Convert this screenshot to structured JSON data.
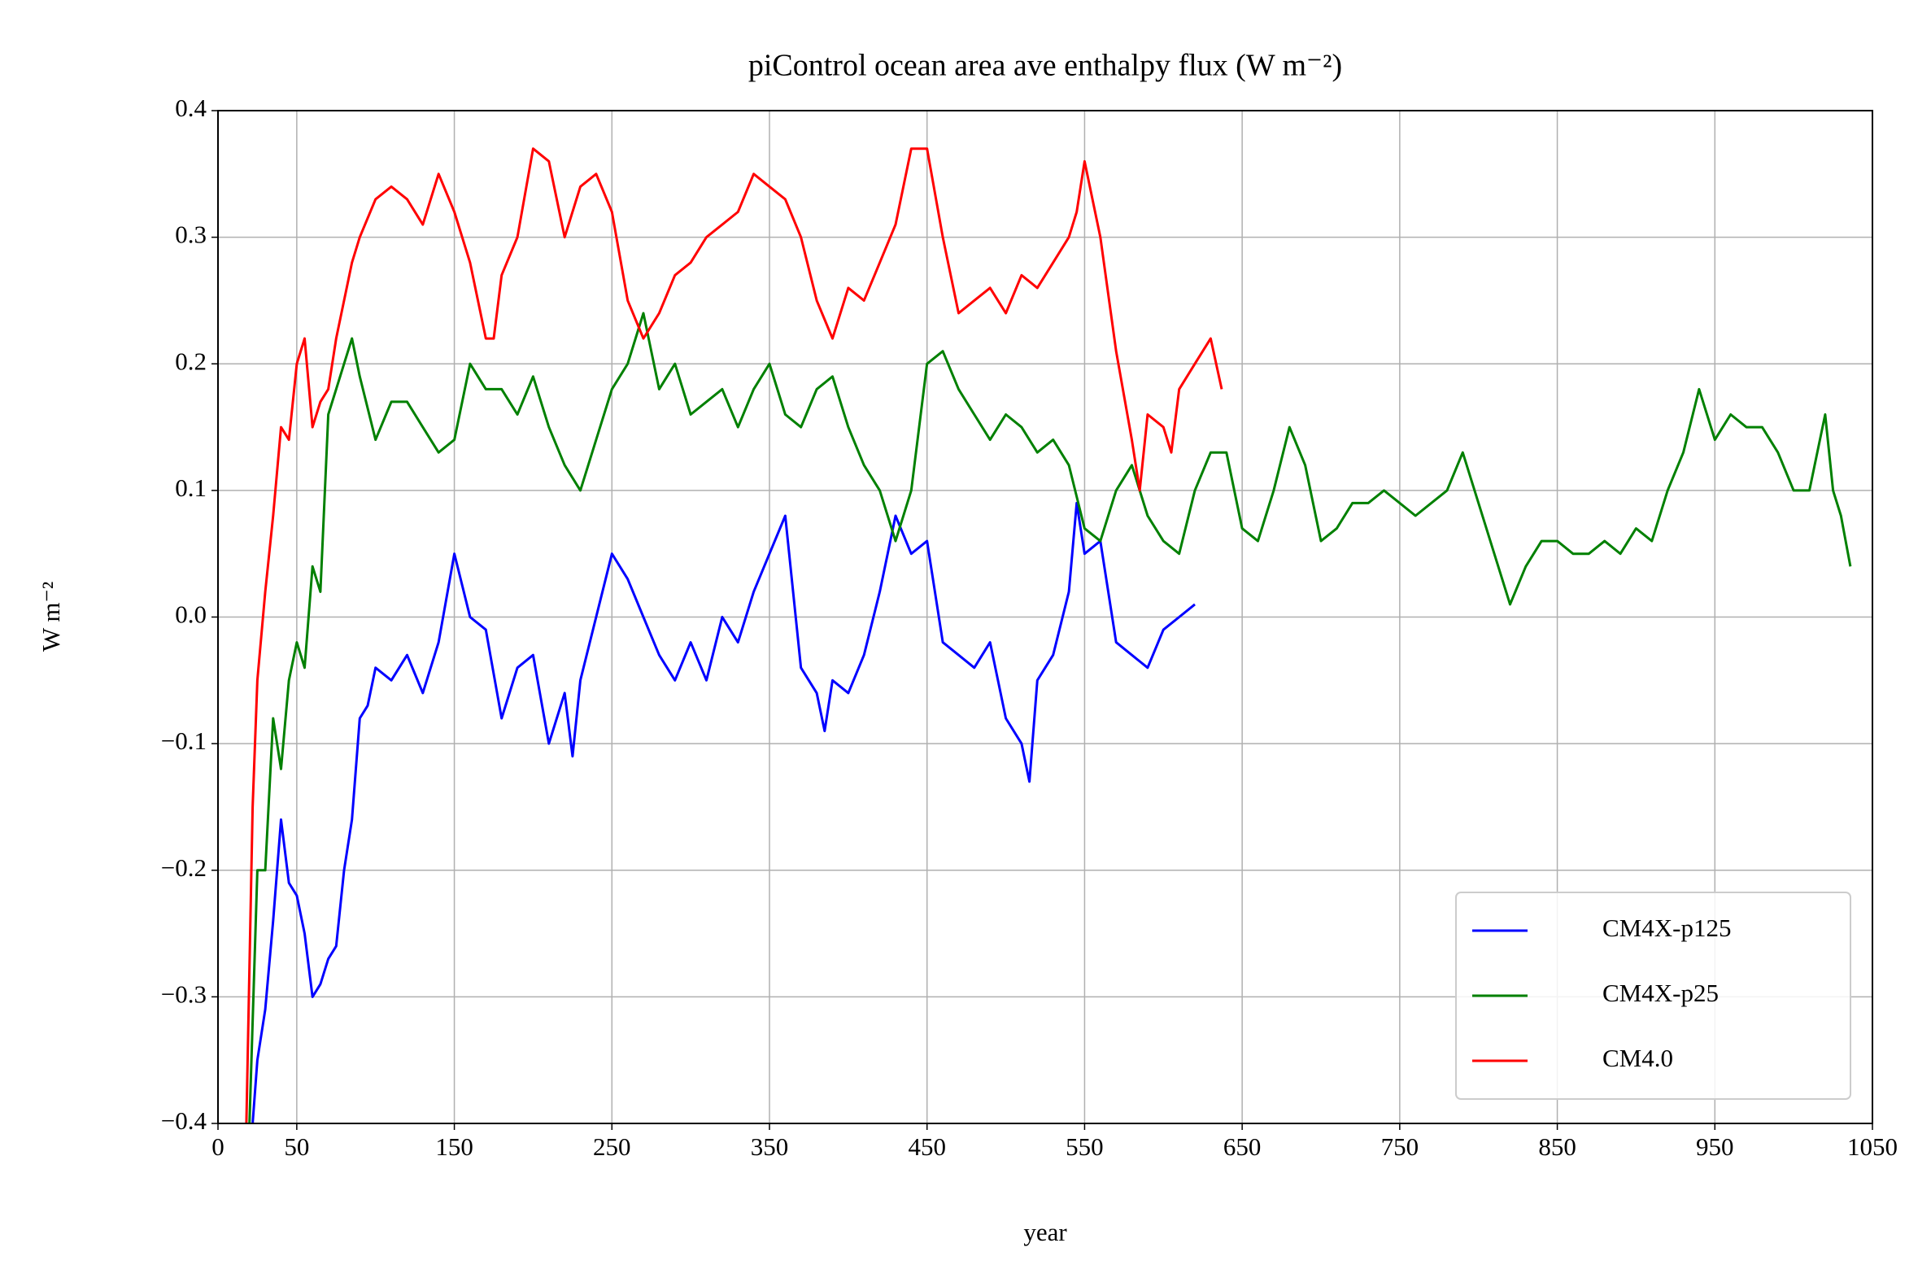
{
  "chart_data": {
    "type": "line",
    "title": "piControl ocean area ave enthalpy flux (W m⁻²)",
    "xlabel": "year",
    "ylabel": "W m⁻²",
    "xlim": [
      0,
      1050
    ],
    "ylim": [
      -0.4,
      0.4
    ],
    "xticks": [
      0,
      50,
      150,
      250,
      350,
      450,
      550,
      650,
      750,
      850,
      950,
      1050
    ],
    "yticks": [
      {
        "value": -0.4,
        "label": "−0.4"
      },
      {
        "value": -0.3,
        "label": "−0.3"
      },
      {
        "value": -0.2,
        "label": "−0.2"
      },
      {
        "value": -0.1,
        "label": "−0.1"
      },
      {
        "value": 0,
        "label": "0.0"
      },
      0.1,
      0.2,
      0.3,
      0.4
    ],
    "grid": true,
    "legend": "lower right",
    "series": [
      {
        "name": "CM4X-p125",
        "color": "#0000ff",
        "x": [
          22,
          25,
          30,
          35,
          40,
          45,
          50,
          55,
          60,
          65,
          70,
          75,
          80,
          85,
          90,
          95,
          100,
          110,
          120,
          130,
          140,
          150,
          160,
          170,
          180,
          190,
          200,
          210,
          220,
          225,
          230,
          240,
          250,
          260,
          270,
          280,
          290,
          300,
          310,
          320,
          330,
          340,
          350,
          360,
          370,
          380,
          385,
          390,
          400,
          410,
          420,
          430,
          440,
          450,
          460,
          470,
          480,
          490,
          500,
          510,
          515,
          520,
          530,
          540,
          545,
          550,
          560,
          570,
          580,
          590,
          600,
          610,
          620
        ],
        "values": [
          -0.4,
          -0.35,
          -0.31,
          -0.24,
          -0.16,
          -0.21,
          -0.22,
          -0.25,
          -0.3,
          -0.29,
          -0.27,
          -0.26,
          -0.2,
          -0.16,
          -0.08,
          -0.07,
          -0.04,
          -0.05,
          -0.03,
          -0.06,
          -0.02,
          0.05,
          0.0,
          -0.01,
          -0.08,
          -0.04,
          -0.03,
          -0.1,
          -0.06,
          -0.11,
          -0.05,
          0.0,
          0.05,
          0.03,
          0.0,
          -0.03,
          -0.05,
          -0.02,
          -0.05,
          0.0,
          -0.02,
          0.02,
          0.05,
          0.08,
          -0.04,
          -0.06,
          -0.09,
          -0.05,
          -0.06,
          -0.03,
          0.02,
          0.08,
          0.05,
          0.06,
          -0.02,
          -0.03,
          -0.04,
          -0.02,
          -0.08,
          -0.1,
          -0.13,
          -0.05,
          -0.03,
          0.02,
          0.09,
          0.05,
          0.06,
          -0.02,
          -0.03,
          -0.04,
          -0.01,
          0.0,
          0.01
        ]
      },
      {
        "name": "CM4X-p25",
        "color": "#008000",
        "x": [
          20,
          25,
          30,
          35,
          40,
          45,
          50,
          55,
          60,
          65,
          70,
          75,
          80,
          85,
          90,
          100,
          110,
          120,
          130,
          140,
          150,
          160,
          170,
          180,
          190,
          200,
          210,
          220,
          230,
          240,
          250,
          260,
          270,
          280,
          290,
          300,
          310,
          320,
          330,
          340,
          350,
          360,
          370,
          380,
          390,
          400,
          410,
          420,
          430,
          440,
          450,
          460,
          470,
          480,
          490,
          500,
          510,
          520,
          530,
          540,
          550,
          560,
          570,
          580,
          590,
          600,
          610,
          620,
          630,
          640,
          650,
          660,
          670,
          680,
          690,
          700,
          710,
          720,
          730,
          740,
          750,
          760,
          770,
          780,
          790,
          800,
          810,
          820,
          830,
          840,
          850,
          860,
          870,
          880,
          890,
          900,
          910,
          920,
          930,
          940,
          950,
          960,
          970,
          980,
          990,
          1000,
          1010,
          1020,
          1025,
          1030,
          1036
        ],
        "values": [
          -0.4,
          -0.2,
          -0.2,
          -0.08,
          -0.12,
          -0.05,
          -0.02,
          -0.04,
          0.04,
          0.02,
          0.16,
          0.18,
          0.2,
          0.22,
          0.19,
          0.14,
          0.17,
          0.17,
          0.15,
          0.13,
          0.14,
          0.2,
          0.18,
          0.18,
          0.16,
          0.19,
          0.15,
          0.12,
          0.1,
          0.14,
          0.18,
          0.2,
          0.24,
          0.18,
          0.2,
          0.16,
          0.17,
          0.18,
          0.15,
          0.18,
          0.2,
          0.16,
          0.15,
          0.18,
          0.19,
          0.15,
          0.12,
          0.1,
          0.06,
          0.1,
          0.2,
          0.21,
          0.18,
          0.16,
          0.14,
          0.16,
          0.15,
          0.13,
          0.14,
          0.12,
          0.07,
          0.06,
          0.1,
          0.12,
          0.08,
          0.06,
          0.05,
          0.1,
          0.13,
          0.13,
          0.07,
          0.06,
          0.1,
          0.15,
          0.12,
          0.06,
          0.07,
          0.09,
          0.09,
          0.1,
          0.09,
          0.08,
          0.09,
          0.1,
          0.13,
          0.09,
          0.05,
          0.01,
          0.04,
          0.06,
          0.06,
          0.05,
          0.05,
          0.06,
          0.05,
          0.07,
          0.06,
          0.1,
          0.13,
          0.18,
          0.14,
          0.16,
          0.15,
          0.15,
          0.13,
          0.1,
          0.1,
          0.16,
          0.1,
          0.08,
          0.04
        ]
      },
      {
        "name": "CM4.0",
        "color": "#ff0000",
        "x": [
          18,
          22,
          25,
          30,
          35,
          40,
          45,
          50,
          55,
          60,
          65,
          70,
          75,
          80,
          85,
          90,
          100,
          110,
          120,
          130,
          140,
          150,
          160,
          170,
          175,
          180,
          190,
          200,
          210,
          220,
          230,
          240,
          250,
          260,
          270,
          280,
          290,
          300,
          310,
          320,
          330,
          340,
          350,
          360,
          370,
          380,
          390,
          400,
          410,
          420,
          430,
          440,
          450,
          460,
          470,
          480,
          490,
          500,
          510,
          520,
          530,
          540,
          545,
          550,
          560,
          570,
          580,
          585,
          590,
          600,
          605,
          610,
          620,
          630,
          637
        ],
        "values": [
          -0.4,
          -0.15,
          -0.05,
          0.02,
          0.08,
          0.15,
          0.14,
          0.2,
          0.22,
          0.15,
          0.17,
          0.18,
          0.22,
          0.25,
          0.28,
          0.3,
          0.33,
          0.34,
          0.33,
          0.31,
          0.35,
          0.32,
          0.28,
          0.22,
          0.22,
          0.27,
          0.3,
          0.37,
          0.36,
          0.3,
          0.34,
          0.35,
          0.32,
          0.25,
          0.22,
          0.24,
          0.27,
          0.28,
          0.3,
          0.31,
          0.32,
          0.35,
          0.34,
          0.33,
          0.3,
          0.25,
          0.22,
          0.26,
          0.25,
          0.28,
          0.31,
          0.37,
          0.37,
          0.3,
          0.24,
          0.25,
          0.26,
          0.24,
          0.27,
          0.26,
          0.28,
          0.3,
          0.32,
          0.36,
          0.3,
          0.21,
          0.14,
          0.1,
          0.16,
          0.15,
          0.13,
          0.18,
          0.2,
          0.22,
          0.18
        ]
      }
    ]
  }
}
